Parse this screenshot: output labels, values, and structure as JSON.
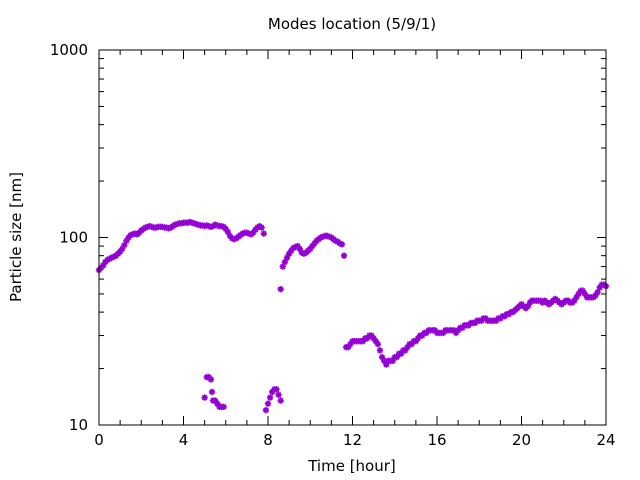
{
  "chart_data": {
    "type": "scatter",
    "title": "Modes location (5/9/1)",
    "xlabel": "Time [hour]",
    "ylabel": "Particle size [nm]",
    "xlim": [
      0,
      24
    ],
    "ylim": [
      10,
      1000
    ],
    "yscale": "log",
    "grid": false,
    "legend": "none",
    "marker_color": "#9400d3",
    "x_ticks": [
      0,
      4,
      8,
      12,
      16,
      20,
      24
    ],
    "x_tick_labels": [
      "0",
      "4",
      "8",
      "12",
      "16",
      "20",
      "24"
    ],
    "y_ticks": [
      10,
      100,
      1000
    ],
    "y_tick_labels": [
      "10",
      "100",
      "1000"
    ],
    "series": [
      {
        "points": [
          [
            0.0,
            67
          ],
          [
            0.1,
            69
          ],
          [
            0.2,
            71
          ],
          [
            0.3,
            74
          ],
          [
            0.4,
            76
          ],
          [
            0.5,
            77
          ],
          [
            0.6,
            78
          ],
          [
            0.7,
            79
          ],
          [
            0.8,
            80
          ],
          [
            0.9,
            82
          ],
          [
            1.0,
            84
          ],
          [
            1.1,
            87
          ],
          [
            1.2,
            91
          ],
          [
            1.3,
            96
          ],
          [
            1.4,
            100
          ],
          [
            1.5,
            103
          ],
          [
            1.6,
            104
          ],
          [
            1.7,
            105
          ],
          [
            1.8,
            104
          ],
          [
            1.9,
            106
          ],
          [
            2.0,
            109
          ],
          [
            2.1,
            111
          ],
          [
            2.2,
            113
          ],
          [
            2.3,
            114
          ],
          [
            2.4,
            115
          ],
          [
            2.5,
            114
          ],
          [
            2.6,
            113
          ],
          [
            2.7,
            113
          ],
          [
            2.8,
            114
          ],
          [
            2.9,
            114
          ],
          [
            3.0,
            114
          ],
          [
            3.1,
            113
          ],
          [
            3.2,
            113
          ],
          [
            3.3,
            112
          ],
          [
            3.4,
            113
          ],
          [
            3.5,
            115
          ],
          [
            3.6,
            117
          ],
          [
            3.7,
            118
          ],
          [
            3.8,
            119
          ],
          [
            3.9,
            119
          ],
          [
            4.0,
            120
          ],
          [
            4.1,
            120
          ],
          [
            4.2,
            120
          ],
          [
            4.3,
            121
          ],
          [
            4.4,
            120
          ],
          [
            4.5,
            119
          ],
          [
            4.6,
            118
          ],
          [
            4.7,
            117
          ],
          [
            4.8,
            116
          ],
          [
            4.9,
            116
          ],
          [
            5.0,
            115
          ],
          [
            5.1,
            116
          ],
          [
            5.2,
            115
          ],
          [
            5.3,
            114
          ],
          [
            5.4,
            115
          ],
          [
            5.5,
            117
          ],
          [
            5.6,
            116
          ],
          [
            5.7,
            115
          ],
          [
            5.8,
            115
          ],
          [
            5.9,
            114
          ],
          [
            6.0,
            111
          ],
          [
            6.1,
            107
          ],
          [
            6.2,
            102
          ],
          [
            6.3,
            99
          ],
          [
            6.4,
            98
          ],
          [
            6.5,
            99
          ],
          [
            6.6,
            101
          ],
          [
            6.7,
            103
          ],
          [
            6.8,
            105
          ],
          [
            6.9,
            106
          ],
          [
            7.0,
            106
          ],
          [
            7.1,
            105
          ],
          [
            7.2,
            104
          ],
          [
            7.3,
            106
          ],
          [
            7.4,
            110
          ],
          [
            7.5,
            113
          ],
          [
            7.6,
            115
          ],
          [
            7.7,
            113
          ],
          [
            7.8,
            105
          ],
          [
            8.6,
            53
          ],
          [
            8.7,
            70
          ],
          [
            8.8,
            74
          ],
          [
            8.9,
            78
          ],
          [
            9.0,
            82
          ],
          [
            9.1,
            85
          ],
          [
            9.2,
            88
          ],
          [
            9.3,
            89
          ],
          [
            9.4,
            90
          ],
          [
            9.5,
            87
          ],
          [
            9.6,
            83
          ],
          [
            9.7,
            82
          ],
          [
            9.8,
            83
          ],
          [
            9.9,
            85
          ],
          [
            10.0,
            87
          ],
          [
            10.1,
            90
          ],
          [
            10.2,
            93
          ],
          [
            10.3,
            96
          ],
          [
            10.4,
            98
          ],
          [
            10.5,
            100
          ],
          [
            10.6,
            101
          ],
          [
            10.7,
            102
          ],
          [
            10.8,
            102
          ],
          [
            10.9,
            101
          ],
          [
            11.0,
            100
          ],
          [
            11.1,
            98
          ],
          [
            11.2,
            96
          ],
          [
            11.3,
            95
          ],
          [
            11.4,
            93
          ],
          [
            11.5,
            92
          ],
          [
            11.6,
            80
          ],
          [
            11.7,
            26
          ],
          [
            11.8,
            26
          ],
          [
            11.9,
            27
          ],
          [
            12.0,
            28
          ],
          [
            12.1,
            28
          ],
          [
            12.2,
            28
          ],
          [
            12.3,
            28
          ],
          [
            12.4,
            28
          ],
          [
            12.5,
            28
          ],
          [
            12.6,
            29
          ],
          [
            12.7,
            29
          ],
          [
            12.8,
            30
          ],
          [
            12.9,
            30
          ],
          [
            13.0,
            29
          ],
          [
            13.1,
            28
          ],
          [
            13.2,
            27
          ],
          [
            13.3,
            25
          ],
          [
            13.4,
            23
          ],
          [
            13.5,
            22
          ],
          [
            13.6,
            21
          ],
          [
            13.7,
            22
          ],
          [
            13.8,
            22
          ],
          [
            13.9,
            22
          ],
          [
            14.0,
            23
          ],
          [
            14.1,
            23
          ],
          [
            14.2,
            24
          ],
          [
            14.3,
            24
          ],
          [
            14.4,
            25
          ],
          [
            14.5,
            25
          ],
          [
            14.6,
            26
          ],
          [
            14.7,
            27
          ],
          [
            14.8,
            27
          ],
          [
            14.9,
            28
          ],
          [
            15.0,
            28
          ],
          [
            15.1,
            29
          ],
          [
            15.2,
            30
          ],
          [
            15.3,
            30
          ],
          [
            15.4,
            31
          ],
          [
            15.5,
            31
          ],
          [
            15.6,
            32
          ],
          [
            15.7,
            32
          ],
          [
            15.8,
            32
          ],
          [
            15.9,
            32
          ],
          [
            16.0,
            31
          ],
          [
            16.1,
            31
          ],
          [
            16.2,
            31
          ],
          [
            16.3,
            31
          ],
          [
            16.4,
            32
          ],
          [
            16.5,
            32
          ],
          [
            16.6,
            32
          ],
          [
            16.7,
            32
          ],
          [
            16.8,
            32
          ],
          [
            16.9,
            31
          ],
          [
            17.0,
            32
          ],
          [
            17.1,
            33
          ],
          [
            17.2,
            33
          ],
          [
            17.3,
            34
          ],
          [
            17.4,
            34
          ],
          [
            17.5,
            34
          ],
          [
            17.6,
            35
          ],
          [
            17.7,
            35
          ],
          [
            17.8,
            35
          ],
          [
            17.9,
            36
          ],
          [
            18.0,
            36
          ],
          [
            18.1,
            36
          ],
          [
            18.2,
            37
          ],
          [
            18.3,
            37
          ],
          [
            18.4,
            36
          ],
          [
            18.5,
            36
          ],
          [
            18.6,
            36
          ],
          [
            18.7,
            36
          ],
          [
            18.8,
            36
          ],
          [
            18.9,
            37
          ],
          [
            19.0,
            37
          ],
          [
            19.1,
            38
          ],
          [
            19.2,
            38
          ],
          [
            19.3,
            39
          ],
          [
            19.4,
            39
          ],
          [
            19.5,
            40
          ],
          [
            19.6,
            40
          ],
          [
            19.7,
            41
          ],
          [
            19.8,
            42
          ],
          [
            19.9,
            43
          ],
          [
            20.0,
            44
          ],
          [
            20.1,
            43
          ],
          [
            20.2,
            42
          ],
          [
            20.3,
            43
          ],
          [
            20.4,
            45
          ],
          [
            20.5,
            46
          ],
          [
            20.6,
            46
          ],
          [
            20.7,
            46
          ],
          [
            20.8,
            46
          ],
          [
            20.9,
            46
          ],
          [
            21.0,
            45
          ],
          [
            21.1,
            46
          ],
          [
            21.2,
            45
          ],
          [
            21.3,
            44
          ],
          [
            21.4,
            45
          ],
          [
            21.5,
            46
          ],
          [
            21.6,
            47
          ],
          [
            21.7,
            46
          ],
          [
            21.8,
            45
          ],
          [
            21.9,
            44
          ],
          [
            22.0,
            45
          ],
          [
            22.1,
            46
          ],
          [
            22.2,
            46
          ],
          [
            22.3,
            45
          ],
          [
            22.4,
            45
          ],
          [
            22.5,
            46
          ],
          [
            22.6,
            48
          ],
          [
            22.7,
            50
          ],
          [
            22.8,
            52
          ],
          [
            22.9,
            52
          ],
          [
            23.0,
            50
          ],
          [
            23.1,
            48
          ],
          [
            23.2,
            48
          ],
          [
            23.3,
            48
          ],
          [
            23.4,
            48
          ],
          [
            23.5,
            49
          ],
          [
            23.6,
            51
          ],
          [
            23.7,
            54
          ],
          [
            23.8,
            56
          ],
          [
            23.9,
            56
          ],
          [
            24.0,
            55
          ]
        ]
      },
      {
        "points": [
          [
            5.0,
            14
          ],
          [
            5.1,
            18
          ],
          [
            5.2,
            18
          ],
          [
            5.3,
            17.5
          ],
          [
            5.35,
            15
          ],
          [
            5.4,
            13.5
          ],
          [
            5.5,
            13.5
          ],
          [
            5.6,
            13
          ],
          [
            5.7,
            12.5
          ],
          [
            5.8,
            12.5
          ],
          [
            5.9,
            12.5
          ],
          [
            7.9,
            12
          ],
          [
            8.0,
            13
          ],
          [
            8.1,
            14
          ],
          [
            8.2,
            15
          ],
          [
            8.3,
            15.5
          ],
          [
            8.4,
            15.5
          ],
          [
            8.5,
            14.5
          ],
          [
            8.6,
            13.5
          ]
        ]
      }
    ]
  }
}
